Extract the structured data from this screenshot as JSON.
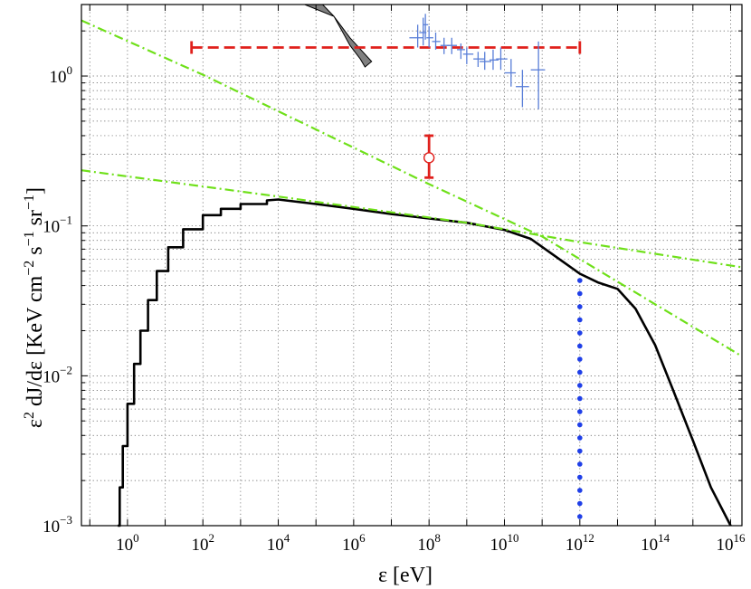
{
  "chart_data": {
    "type": "line",
    "title": "",
    "xlabel": "ε [eV]",
    "ylabel": {
      "prefix": "ε",
      "exp1": "2",
      "mid": " dJ/dε [KeV cm",
      "exp2": "−2",
      "mid2": " s",
      "exp3": "−1",
      "mid3": " sr",
      "exp4": "−1",
      "suffix": "]"
    },
    "x_scale": "log",
    "y_scale": "log",
    "xlim": [
      0.06,
      2e+16
    ],
    "ylim": [
      0.001,
      3.0
    ],
    "grid": true,
    "x_ticks": [
      {
        "base": "10",
        "exp": "0",
        "value": 1
      },
      {
        "base": "10",
        "exp": "2",
        "value": 100
      },
      {
        "base": "10",
        "exp": "4",
        "value": 10000.0
      },
      {
        "base": "10",
        "exp": "6",
        "value": 1000000.0
      },
      {
        "base": "10",
        "exp": "8",
        "value": 100000000.0
      },
      {
        "base": "10",
        "exp": "10",
        "value": 10000000000.0
      },
      {
        "base": "10",
        "exp": "12",
        "value": 1000000000000.0
      },
      {
        "base": "10",
        "exp": "14",
        "value": 100000000000000.0
      },
      {
        "base": "10",
        "exp": "16",
        "value": 1e+16
      }
    ],
    "y_ticks": [
      {
        "base": "10",
        "exp": "−3",
        "value": 0.001
      },
      {
        "base": "10",
        "exp": "−2",
        "value": 0.01
      },
      {
        "base": "10",
        "exp": "−1",
        "value": 0.1
      },
      {
        "base": "10",
        "exp": "0",
        "value": 1
      }
    ],
    "colors": {
      "main": "#000000",
      "green": "#6fe01a",
      "red": "#e0201c",
      "blue": "#1f3fe8",
      "points": "#5a7fd8",
      "band": "#808080"
    },
    "series": [
      {
        "style": "solid-black",
        "x": [
          0.55,
          0.62,
          0.75,
          1.0,
          1.5,
          2.2,
          3.5,
          6,
          12,
          30,
          100,
          300,
          1000,
          5000,
          10000,
          100000,
          1000000,
          10000000,
          100000000,
          1000000000,
          10000000000,
          50000000000,
          200000000000,
          1000000000000,
          3000000000000,
          10000000000000,
          30000000000000,
          100000000000000,
          300000000000000,
          1000000000000000,
          3000000000000000,
          10000000000000000
        ],
        "y": [
          0.001,
          0.0018,
          0.0034,
          0.0065,
          0.012,
          0.02,
          0.032,
          0.05,
          0.072,
          0.095,
          0.118,
          0.13,
          0.14,
          0.148,
          0.15,
          0.14,
          0.13,
          0.12,
          0.112,
          0.105,
          0.094,
          0.082,
          0.064,
          0.048,
          0.042,
          0.038,
          0.028,
          0.016,
          0.008,
          0.0037,
          0.0018,
          0.001
        ]
      },
      {
        "style": "dashdot-green",
        "x": [
          0.06,
          10000,
          1000000000,
          1000000000000,
          20000000000000000
        ],
        "y": [
          0.235,
          0.157,
          0.105,
          0.078,
          0.053
        ]
      },
      {
        "style": "dashdot-green",
        "x": [
          0.06,
          100,
          100000,
          100000000,
          100000000000,
          20000000000000000
        ],
        "y": [
          2.35,
          1.02,
          0.44,
          0.19,
          0.085,
          0.0135
        ]
      },
      {
        "style": "dotted-blue",
        "x": [
          1000000000000,
          1000000000000
        ],
        "y": [
          0.047,
          0.001
        ]
      }
    ],
    "upper_limit": {
      "x": [
        50,
        1000000000000
      ],
      "y": 1.55
    },
    "point": {
      "x": 100000000,
      "y": 0.285,
      "y_low": 0.21,
      "y_high": 0.4
    },
    "band": [
      {
        "x": 50000,
        "y": 3.0
      },
      {
        "x": 150000,
        "y": 3.0
      },
      {
        "x": 300000,
        "y": 2.5
      },
      {
        "x": 800000,
        "y": 1.6
      },
      {
        "x": 1500000,
        "y": 1.3
      },
      {
        "x": 2000000,
        "y": 1.15
      },
      {
        "x": 3000000,
        "y": 1.25
      },
      {
        "x": 800000,
        "y": 1.8
      },
      {
        "x": 300000,
        "y": 2.5
      }
    ],
    "data_points": [
      {
        "x": 50000000,
        "y": 1.8,
        "ylo": 1.55,
        "yhi": 2.2,
        "xlo": 30000000,
        "xhi": 70000000
      },
      {
        "x": 70000000,
        "y": 1.95,
        "ylo": 1.6,
        "yhi": 2.45,
        "xlo": 55000000,
        "xhi": 85000000
      },
      {
        "x": 80000000,
        "y": 2.2,
        "ylo": 1.75,
        "yhi": 2.6,
        "xlo": 70000000,
        "xhi": 95000000
      },
      {
        "x": 100000000,
        "y": 1.8,
        "ylo": 1.55,
        "yhi": 2.15,
        "xlo": 85000000,
        "xhi": 130000000
      },
      {
        "x": 150000000,
        "y": 1.7,
        "ylo": 1.5,
        "yhi": 1.95,
        "xlo": 120000000,
        "xhi": 200000000
      },
      {
        "x": 250000000,
        "y": 1.6,
        "ylo": 1.4,
        "yhi": 1.8,
        "xlo": 200000000,
        "xhi": 350000000
      },
      {
        "x": 400000000,
        "y": 1.6,
        "ylo": 1.4,
        "yhi": 1.8,
        "xlo": 300000000,
        "xhi": 550000000
      },
      {
        "x": 700000000,
        "y": 1.5,
        "ylo": 1.3,
        "yhi": 1.65,
        "xlo": 550000000,
        "xhi": 900000000
      },
      {
        "x": 1000000000,
        "y": 1.4,
        "ylo": 1.2,
        "yhi": 1.55,
        "xlo": 800000000,
        "xhi": 1500000000
      },
      {
        "x": 2000000000,
        "y": 1.3,
        "ylo": 1.15,
        "yhi": 1.45,
        "xlo": 1500000000,
        "xhi": 3000000000
      },
      {
        "x": 3000000000,
        "y": 1.25,
        "ylo": 1.1,
        "yhi": 1.45,
        "xlo": 2200000000,
        "xhi": 4500000000
      },
      {
        "x": 5000000000,
        "y": 1.28,
        "ylo": 1.1,
        "yhi": 1.5,
        "xlo": 4000000000,
        "xhi": 7000000000
      },
      {
        "x": 8000000000,
        "y": 1.3,
        "ylo": 1.1,
        "yhi": 1.55,
        "xlo": 6000000000,
        "xhi": 12000000000
      },
      {
        "x": 15000000000,
        "y": 1.05,
        "ylo": 0.85,
        "yhi": 1.3,
        "xlo": 10000000000,
        "xhi": 20000000000
      },
      {
        "x": 30000000000,
        "y": 0.85,
        "ylo": 0.62,
        "yhi": 1.1,
        "xlo": 20000000000,
        "xhi": 45000000000
      },
      {
        "x": 80000000000,
        "y": 1.1,
        "ylo": 0.6,
        "yhi": 1.7,
        "xlo": 50000000000,
        "xhi": 120000000000
      }
    ]
  }
}
